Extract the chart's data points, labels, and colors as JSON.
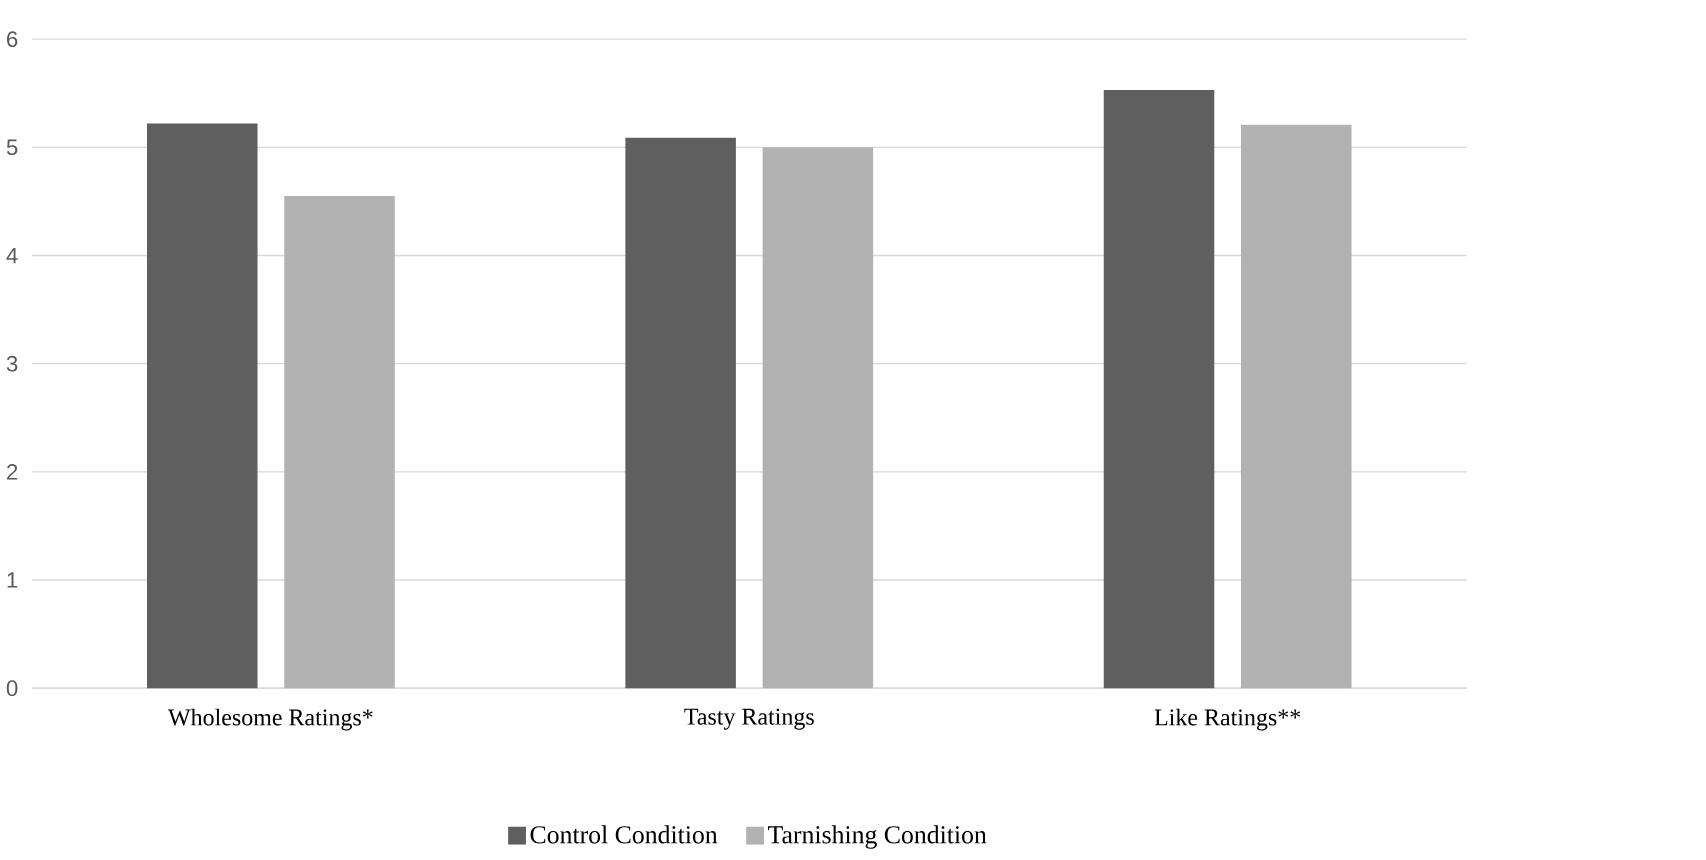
{
  "chart_data": {
    "type": "bar",
    "categories": [
      "Wholesome Ratings*",
      "Tasty Ratings",
      "Like Ratings**"
    ],
    "series": [
      {
        "name": "Control Condition",
        "color": "#5f5f5f",
        "values": [
          5.22,
          5.09,
          5.53
        ]
      },
      {
        "name": "Tarnishing Condition",
        "color": "#b2b2b2",
        "values": [
          4.55,
          5.0,
          5.21
        ]
      }
    ],
    "ylim": [
      0,
      6
    ],
    "yticks": [
      0,
      1,
      2,
      3,
      4,
      5,
      6
    ],
    "grid": "y",
    "legend": "bottom"
  }
}
